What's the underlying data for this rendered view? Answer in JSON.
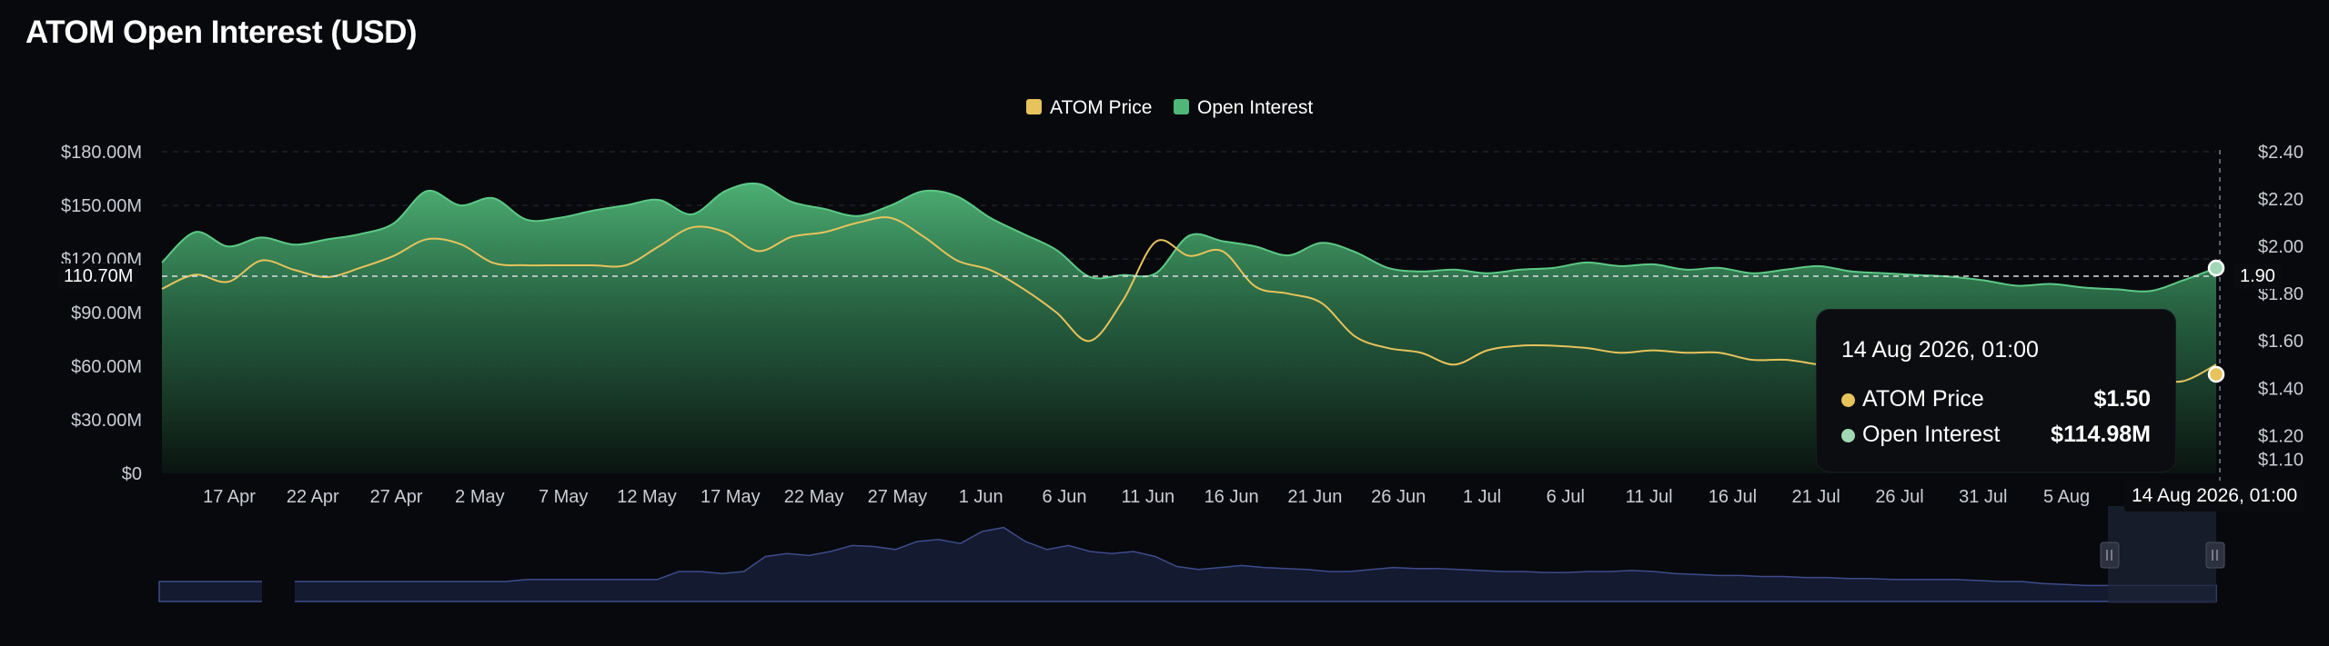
{
  "page_title": "ATOM Open Interest (USD)",
  "legend": [
    {
      "label": "ATOM Price",
      "color": "#e7c35c"
    },
    {
      "label": "Open Interest",
      "color": "#4fb777"
    }
  ],
  "tooltip": {
    "title": "14 Aug 2026, 01:00",
    "rows": [
      {
        "label": "ATOM Price",
        "value": "$1.50",
        "color": "#e7c35c"
      },
      {
        "label": "Open Interest",
        "value": "$114.98M",
        "color": "#9fd8b3"
      }
    ]
  },
  "crosshair": {
    "x_label": "14 Aug 2026, 01:00",
    "y_left_label": "110.70M",
    "y_right_label": "1.90"
  },
  "chart_data": {
    "type": "area",
    "title": "ATOM Open Interest (USD)",
    "x_tick_labels": [
      "17 Apr",
      "22 Apr",
      "27 Apr",
      "2 May",
      "7 May",
      "12 May",
      "17 May",
      "22 May",
      "27 May",
      "1 Jun",
      "6 Jun",
      "11 Jun",
      "16 Jun",
      "21 Jun",
      "26 Jun",
      "1 Jul",
      "6 Jul",
      "11 Jul",
      "16 Jul",
      "21 Jul",
      "26 Jul",
      "31 Jul",
      "5 Aug"
    ],
    "left_axis": {
      "ticks": [
        "$0",
        "$30.00M",
        "$60.00M",
        "$90.00M",
        "$120.00M",
        "$150.00M",
        "$180.00M"
      ],
      "ylim": [
        0,
        180
      ]
    },
    "right_axis": {
      "ticks": [
        "$1.10",
        "$1.20",
        "$1.40",
        "$1.60",
        "$1.80",
        "$2.00",
        "$2.20",
        "$2.40"
      ],
      "ylim": [
        1.04,
        2.4
      ]
    },
    "x": [
      "13 Apr",
      "15 Apr",
      "17 Apr",
      "19 Apr",
      "21 Apr",
      "23 Apr",
      "25 Apr",
      "27 Apr",
      "29 Apr",
      "1 May",
      "3 May",
      "5 May",
      "7 May",
      "9 May",
      "11 May",
      "13 May",
      "15 May",
      "17 May",
      "19 May",
      "21 May",
      "23 May",
      "25 May",
      "27 May",
      "29 May",
      "31 May",
      "2 Jun",
      "4 Jun",
      "6 Jun",
      "8 Jun",
      "10 Jun",
      "12 Jun",
      "14 Jun",
      "16 Jun",
      "18 Jun",
      "20 Jun",
      "22 Jun",
      "24 Jun",
      "26 Jun",
      "28 Jun",
      "30 Jun",
      "2 Jul",
      "4 Jul",
      "6 Jul",
      "8 Jul",
      "10 Jul",
      "12 Jul",
      "14 Jul",
      "16 Jul",
      "18 Jul",
      "20 Jul",
      "22 Jul",
      "24 Jul",
      "26 Jul",
      "28 Jul",
      "30 Jul",
      "1 Aug",
      "3 Aug",
      "5 Aug",
      "7 Aug",
      "9 Aug",
      "11 Aug",
      "13 Aug",
      "14 Aug"
    ],
    "series": [
      {
        "name": "Open Interest",
        "axis": "left",
        "unit": "USD M",
        "color": "#4fb777",
        "values": [
          118,
          135,
          127,
          132,
          128,
          131,
          134,
          140,
          158,
          150,
          154,
          142,
          143,
          147,
          150,
          153,
          145,
          158,
          162,
          152,
          148,
          144,
          150,
          158,
          155,
          143,
          134,
          125,
          110,
          111,
          112,
          133,
          130,
          127,
          122,
          129,
          124,
          115,
          113,
          114,
          112,
          114,
          115,
          118,
          116,
          117,
          114,
          115,
          112,
          114,
          116,
          113,
          112,
          111,
          110,
          108,
          105,
          106,
          104,
          103,
          102,
          108,
          115
        ]
      },
      {
        "name": "ATOM Price",
        "axis": "right",
        "unit": "USD",
        "color": "#e7c35c",
        "values": [
          1.82,
          1.88,
          1.85,
          1.94,
          1.9,
          1.87,
          1.91,
          1.96,
          2.03,
          2.01,
          1.93,
          1.92,
          1.92,
          1.92,
          1.92,
          2.0,
          2.08,
          2.06,
          1.98,
          2.04,
          2.06,
          2.1,
          2.12,
          2.04,
          1.94,
          1.9,
          1.82,
          1.72,
          1.6,
          1.77,
          2.02,
          1.96,
          1.98,
          1.83,
          1.8,
          1.76,
          1.62,
          1.57,
          1.55,
          1.5,
          1.56,
          1.58,
          1.58,
          1.57,
          1.55,
          1.56,
          1.55,
          1.55,
          1.52,
          1.52,
          1.5,
          1.48,
          1.47,
          1.47,
          1.46,
          1.44,
          1.44,
          1.46,
          1.44,
          1.44,
          1.44,
          1.43,
          1.5
        ]
      }
    ],
    "navigator": {
      "visible": true,
      "window": [
        "4 Aug",
        "14 Aug"
      ]
    }
  }
}
